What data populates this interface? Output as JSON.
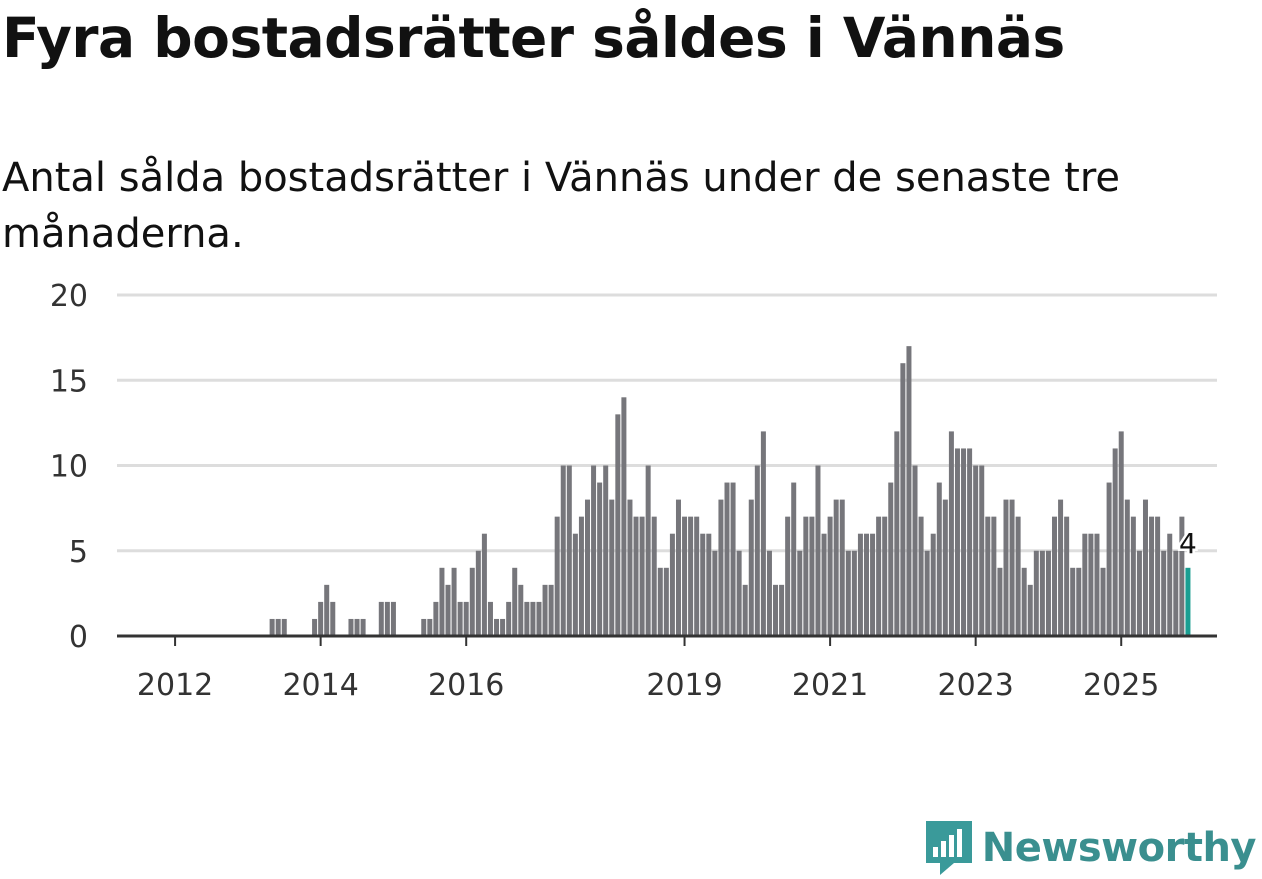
{
  "title": "Fyra bostadsrätter såldes i Vännäs",
  "subtitle": "Antal sålda bostadsrätter i Vännäs under de senaste tre månaderna.",
  "brand": {
    "name": "Newsworthy",
    "color": "#3a9a9a",
    "icon": "newsworthy-logo-icon"
  },
  "colors": {
    "bar": "#76767b",
    "highlight": "#1a9e92",
    "grid": "#dddddd",
    "axis": "#333333"
  },
  "chart_data": {
    "type": "bar",
    "title": "Fyra bostadsrätter såldes i Vännäs",
    "xlabel": "",
    "ylabel": "",
    "ylim": [
      0,
      20
    ],
    "yticks": [
      0,
      5,
      10,
      15,
      20
    ],
    "x_start": "2011-04",
    "xticks": [
      {
        "label": "2012",
        "index": 9
      },
      {
        "label": "2014",
        "index": 33
      },
      {
        "label": "2016",
        "index": 57
      },
      {
        "label": "2019",
        "index": 93
      },
      {
        "label": "2021",
        "index": 117
      },
      {
        "label": "2023",
        "index": 141
      },
      {
        "label": "2025",
        "index": 165
      }
    ],
    "values": [
      0,
      0,
      0,
      0,
      0,
      0,
      0,
      0,
      0,
      0,
      0,
      0,
      0,
      0,
      0,
      0,
      0,
      0,
      0,
      0,
      0,
      0,
      0,
      0,
      0,
      1,
      1,
      1,
      0,
      0,
      0,
      0,
      1,
      2,
      3,
      2,
      0,
      0,
      1,
      1,
      1,
      0,
      0,
      2,
      2,
      2,
      0,
      0,
      0,
      0,
      1,
      1,
      2,
      4,
      3,
      4,
      2,
      2,
      4,
      5,
      6,
      2,
      1,
      1,
      2,
      4,
      3,
      2,
      2,
      2,
      3,
      3,
      7,
      10,
      10,
      6,
      7,
      8,
      10,
      9,
      10,
      8,
      13,
      14,
      8,
      7,
      7,
      10,
      7,
      4,
      4,
      6,
      8,
      7,
      7,
      7,
      6,
      6,
      5,
      8,
      9,
      9,
      5,
      3,
      8,
      10,
      12,
      5,
      3,
      3,
      7,
      9,
      5,
      7,
      7,
      10,
      6,
      7,
      8,
      8,
      5,
      5,
      6,
      6,
      6,
      7,
      7,
      9,
      12,
      16,
      17,
      10,
      7,
      5,
      6,
      9,
      8,
      12,
      11,
      11,
      11,
      10,
      10,
      7,
      7,
      4,
      8,
      8,
      7,
      4,
      3,
      5,
      5,
      5,
      7,
      8,
      7,
      4,
      4,
      6,
      6,
      6,
      4,
      9,
      11,
      12,
      8,
      7,
      5,
      8,
      7,
      7,
      5,
      6,
      5,
      7,
      4
    ],
    "highlight_index": 176,
    "highlight_label": "4"
  }
}
